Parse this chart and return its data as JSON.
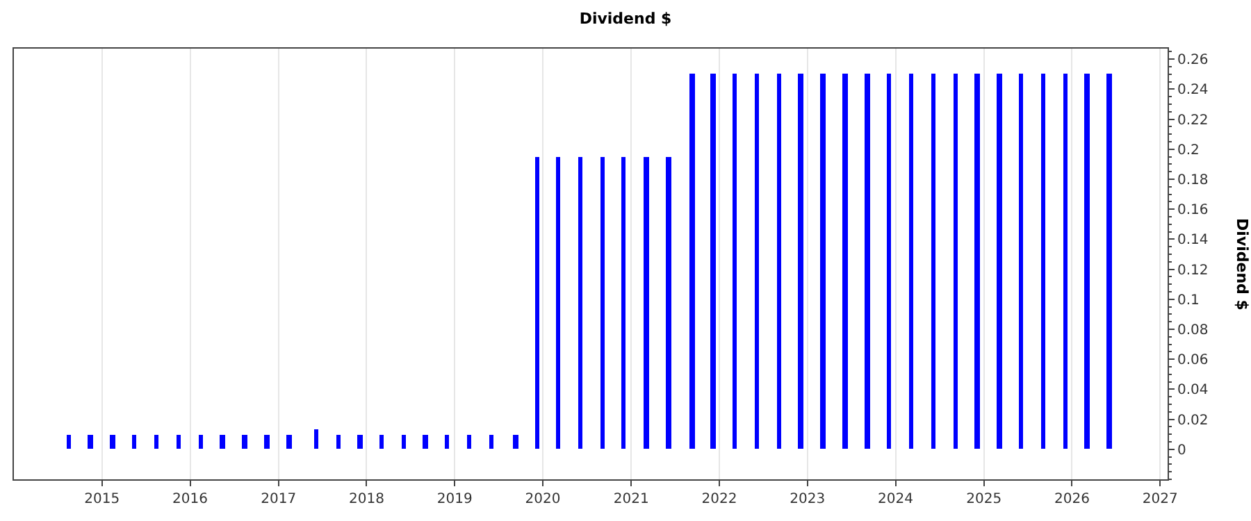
{
  "chart_data": {
    "type": "bar",
    "title": "Dividend $",
    "ylabel": "Dividend $",
    "x": [
      "2014-08-15",
      "2014-11-15",
      "2015-02-15",
      "2015-05-15",
      "2015-08-15",
      "2015-11-15",
      "2016-02-15",
      "2016-05-15",
      "2016-08-15",
      "2016-11-15",
      "2017-02-15",
      "2017-06-05",
      "2017-09-05",
      "2017-12-05",
      "2018-03-05",
      "2018-06-05",
      "2018-09-01",
      "2018-12-01",
      "2019-03-01",
      "2019-06-01",
      "2019-09-10",
      "2019-12-10",
      "2020-03-05",
      "2020-06-05",
      "2020-09-05",
      "2020-12-01",
      "2021-03-05",
      "2021-06-05",
      "2021-09-10",
      "2021-12-05",
      "2022-03-05",
      "2022-06-05",
      "2022-09-05",
      "2022-12-05",
      "2023-03-05",
      "2023-06-05",
      "2023-09-05",
      "2023-12-05",
      "2024-03-05",
      "2024-06-05",
      "2024-09-05",
      "2024-12-05",
      "2025-03-05",
      "2025-06-05",
      "2025-09-05",
      "2025-12-05",
      "2026-03-05",
      "2026-06-05"
    ],
    "series": [
      {
        "color": "#0000ff",
        "values": [
          0.01,
          0.01,
          0.01,
          0.01,
          0.01,
          0.01,
          0.01,
          0.01,
          0.01,
          0.01,
          0.01,
          0.013,
          0.01,
          0.01,
          0.01,
          0.01,
          0.01,
          0.01,
          0.01,
          0.01,
          0.01,
          0.195,
          0.195,
          0.195,
          0.195,
          0.195,
          0.195,
          0.195,
          0.25,
          0.25,
          0.25,
          0.25,
          0.25,
          0.25,
          0.25,
          0.25,
          0.25,
          0.25,
          0.25,
          0.25,
          0.25,
          0.25,
          0.25,
          0.25,
          0.25,
          0.25,
          0.25,
          0.25
        ]
      }
    ],
    "xlim": [
      "2014-01-01",
      "2027-02-01"
    ],
    "xticks": [
      {
        "value": "2015-01-01",
        "label": "2015"
      },
      {
        "value": "2016-01-01",
        "label": "2016"
      },
      {
        "value": "2017-01-01",
        "label": "2017"
      },
      {
        "value": "2018-01-01",
        "label": "2018"
      },
      {
        "value": "2019-01-01",
        "label": "2019"
      },
      {
        "value": "2020-01-01",
        "label": "2020"
      },
      {
        "value": "2021-01-01",
        "label": "2021"
      },
      {
        "value": "2022-01-01",
        "label": "2022"
      },
      {
        "value": "2023-01-01",
        "label": "2023"
      },
      {
        "value": "2024-01-01",
        "label": "2024"
      },
      {
        "value": "2025-01-01",
        "label": "2025"
      },
      {
        "value": "2026-01-01",
        "label": "2026"
      },
      {
        "value": "2027-01-01",
        "label": "2027"
      }
    ],
    "ylim": [
      -0.02,
      0.267
    ],
    "yticks": [
      0,
      0.02,
      0.04,
      0.06,
      0.08,
      0.1,
      0.12,
      0.14,
      0.16,
      0.18,
      0.2,
      0.22,
      0.24,
      0.26
    ],
    "grid": "x"
  }
}
